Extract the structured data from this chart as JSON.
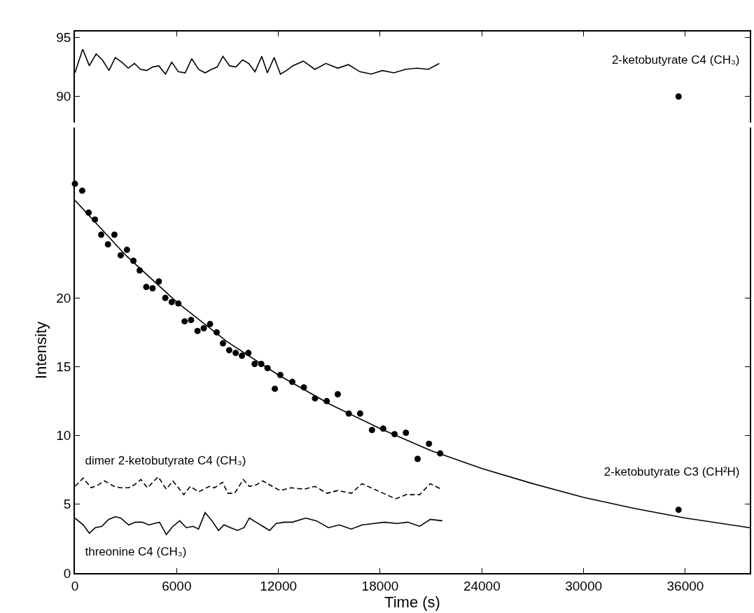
{
  "chart_data": [
    {
      "type": "line",
      "xlim": [
        0,
        39800
      ],
      "xticks": [
        0,
        6000,
        12000,
        18000,
        24000,
        30000,
        36000
      ],
      "ylim": [
        87.8,
        95.5
      ],
      "yticks": [
        90,
        95
      ],
      "tick_labels": "y",
      "grid": false,
      "legend": false,
      "series": [
        {
          "color": "#000000",
          "line_style": "solid",
          "x": [
            0,
            460,
            850,
            1250,
            1620,
            2010,
            2380,
            2770,
            3140,
            3510,
            3870,
            4240,
            4580,
            4950,
            5340,
            5710,
            6100,
            6500,
            6890,
            7290,
            7680,
            8050,
            8390,
            8730,
            9120,
            9490,
            9890,
            10250,
            10620,
            11020,
            11350,
            11750,
            12120,
            12480,
            12850,
            13470,
            14150,
            14800,
            15500,
            16130,
            16800,
            17480,
            18130,
            18810,
            19490,
            20160,
            20840,
            21490
          ],
          "values": [
            92.0,
            94.0,
            92.6,
            93.6,
            93.1,
            92.2,
            93.3,
            92.9,
            92.4,
            92.8,
            92.3,
            92.2,
            92.5,
            92.6,
            91.9,
            92.9,
            92.1,
            92.0,
            93.2,
            92.3,
            92.0,
            92.3,
            92.5,
            93.4,
            92.6,
            92.5,
            93.1,
            92.8,
            92.1,
            93.4,
            92.0,
            93.3,
            91.9,
            92.2,
            92.6,
            93.0,
            92.3,
            92.8,
            92.4,
            92.7,
            92.1,
            91.9,
            92.2,
            92.0,
            92.3,
            92.4,
            92.3,
            92.8
          ]
        },
        {
          "name": "2-ketobutyrate C4 (CH₃)",
          "type": "scatter",
          "color": "#000000",
          "marker": "circle",
          "x": [
            35600
          ],
          "values": [
            90.0
          ]
        }
      ]
    },
    {
      "type": "line",
      "xlabel": "Time (s)",
      "ylabel": "Intensity",
      "xlim": [
        0,
        39800
      ],
      "xticks": [
        0,
        6000,
        12000,
        18000,
        24000,
        30000,
        36000
      ],
      "ylim": [
        0,
        32.4
      ],
      "yticks": [
        0,
        5,
        10,
        15,
        20
      ],
      "grid": false,
      "legend": false,
      "series": [
        {
          "name": "2-ketobutyrate C3 (CH²H)",
          "type": "scatter",
          "color": "#000000",
          "marker": "circle",
          "x": [
            0,
            430,
            810,
            1180,
            1550,
            1950,
            2330,
            2700,
            3070,
            3450,
            3820,
            4210,
            4580,
            4950,
            5330,
            5710,
            6100,
            6470,
            6850,
            7230,
            7600,
            7970,
            8360,
            8730,
            9100,
            9480,
            9850,
            10230,
            10600,
            10990,
            11360,
            11790,
            12110,
            12820,
            13500,
            14160,
            14850,
            15500,
            16150,
            16820,
            17520,
            18180,
            18850,
            19520,
            20210,
            20880,
            21540,
            35600
          ],
          "values": [
            28.3,
            27.8,
            26.2,
            25.7,
            24.6,
            23.9,
            24.6,
            23.1,
            23.5,
            22.7,
            22.0,
            20.8,
            20.7,
            21.2,
            20.0,
            19.7,
            19.6,
            18.3,
            18.4,
            17.6,
            17.8,
            18.1,
            17.5,
            16.7,
            16.2,
            16.0,
            15.8,
            16.0,
            15.2,
            15.2,
            14.9,
            13.4,
            14.4,
            13.9,
            13.5,
            12.7,
            12.5,
            13.0,
            11.6,
            11.6,
            10.4,
            10.5,
            10.1,
            10.2,
            8.3,
            9.4,
            8.7,
            4.6
          ]
        },
        {
          "color": "#000000",
          "line_style": "solid",
          "x": [
            0,
            3000,
            6000,
            9000,
            12000,
            15000,
            18000,
            21000,
            24000,
            27000,
            30000,
            33000,
            36000,
            39800
          ],
          "values": [
            27.1,
            23.1,
            19.7,
            16.8,
            14.4,
            12.3,
            10.5,
            8.9,
            7.6,
            6.5,
            5.5,
            4.7,
            4.0,
            3.3
          ]
        },
        {
          "name": "dimer 2-ketobutyrate C4 (CH₃)",
          "color": "#000000",
          "line_style": "dashed",
          "x": [
            0,
            490,
            960,
            1360,
            1750,
            2310,
            2700,
            3170,
            3490,
            3890,
            4280,
            4910,
            5390,
            5780,
            6420,
            6810,
            7290,
            7920,
            8230,
            8710,
            9020,
            9420,
            9930,
            10290,
            10680,
            11080,
            11790,
            12110,
            12740,
            13530,
            14160,
            14870,
            15510,
            16300,
            16930,
            17640,
            18190,
            18910,
            19540,
            20330,
            20960,
            21590
          ],
          "values": [
            6.3,
            6.9,
            6.2,
            6.4,
            6.7,
            6.3,
            6.2,
            6.2,
            6.4,
            6.8,
            6.2,
            7.0,
            6.1,
            6.7,
            5.7,
            6.3,
            5.9,
            6.3,
            6.2,
            6.6,
            5.8,
            5.8,
            6.8,
            6.3,
            6.4,
            6.7,
            6.2,
            6.0,
            6.2,
            6.1,
            6.3,
            5.8,
            6.0,
            5.8,
            6.5,
            6.1,
            5.8,
            5.4,
            5.7,
            5.7,
            6.5,
            6.1
          ]
        },
        {
          "name": "threonine C4 (CH₃)",
          "color": "#000000",
          "line_style": "solid",
          "x": [
            0,
            490,
            850,
            1200,
            1590,
            1990,
            2380,
            2700,
            3170,
            3570,
            3970,
            4360,
            4680,
            4990,
            5390,
            5780,
            6180,
            6570,
            6970,
            7290,
            7680,
            8080,
            8470,
            8790,
            9180,
            9580,
            9970,
            10290,
            10680,
            11080,
            11480,
            11870,
            12340,
            12820,
            13610,
            14240,
            14950,
            15590,
            16300,
            16930,
            17640,
            18270,
            18980,
            19620,
            20330,
            20960,
            21670
          ],
          "values": [
            4.0,
            3.5,
            2.9,
            3.3,
            3.4,
            3.9,
            4.1,
            4.0,
            3.5,
            3.7,
            3.7,
            3.5,
            3.6,
            3.7,
            2.8,
            3.4,
            3.8,
            3.3,
            3.4,
            3.2,
            4.4,
            3.8,
            3.1,
            3.5,
            3.3,
            3.1,
            3.3,
            4.0,
            3.7,
            3.4,
            3.1,
            3.6,
            3.7,
            3.7,
            4.0,
            3.8,
            3.3,
            3.5,
            3.2,
            3.5,
            3.6,
            3.7,
            3.6,
            3.7,
            3.4,
            3.9,
            3.8
          ]
        }
      ]
    }
  ]
}
